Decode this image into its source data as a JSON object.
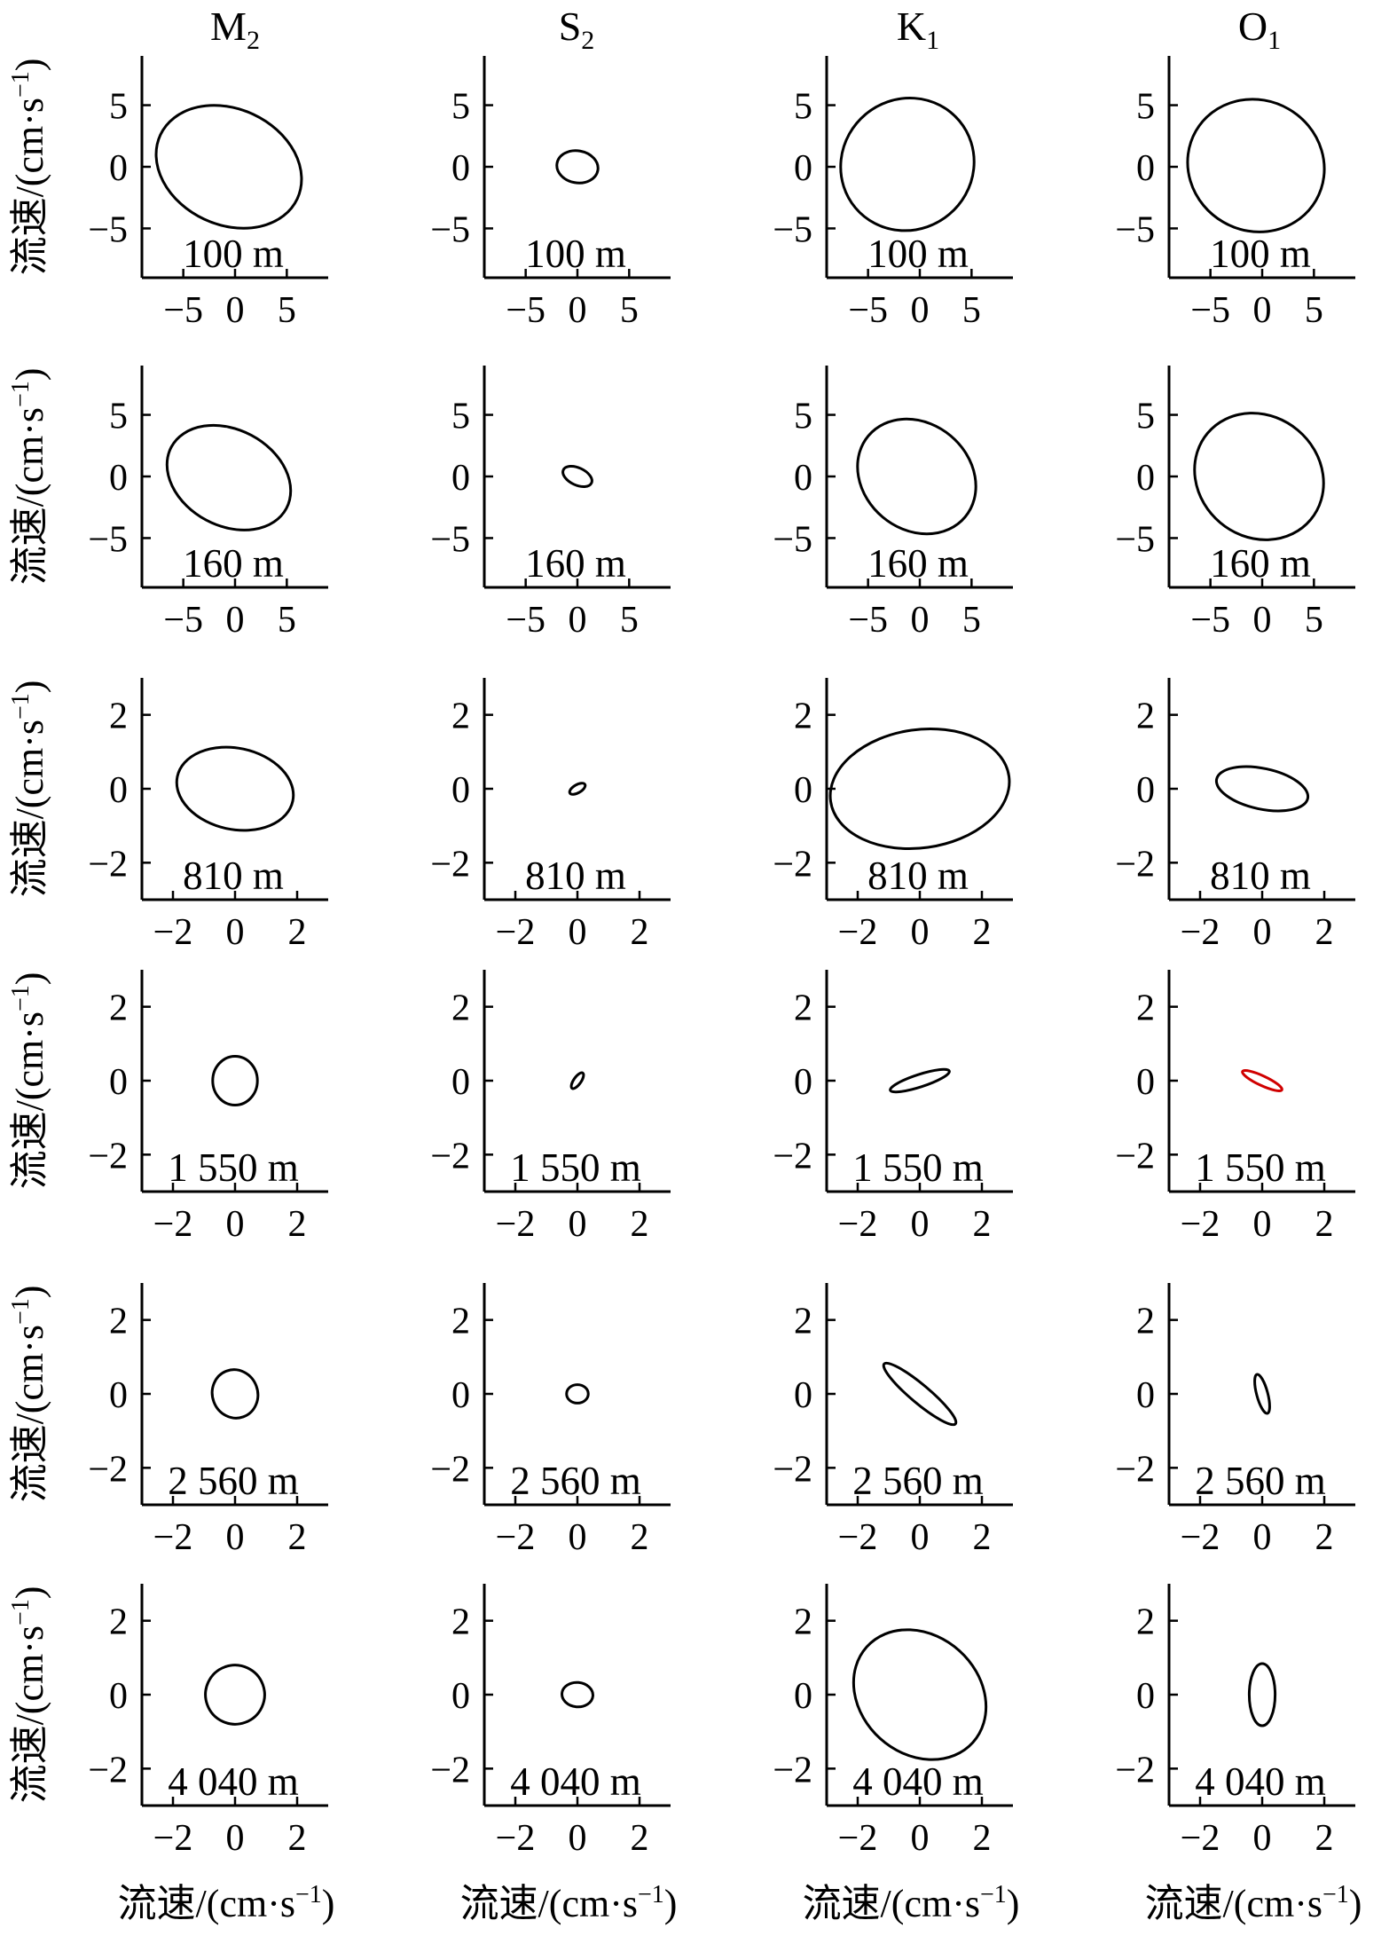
{
  "figure": {
    "column_titles": [
      {
        "base": "M",
        "sub": "2"
      },
      {
        "base": "S",
        "sub": "2"
      },
      {
        "base": "K",
        "sub": "1"
      },
      {
        "base": "O",
        "sub": "1"
      }
    ],
    "axis_label": {
      "prefix": "流速/(cm·s",
      "sup": "−1",
      "suffix": ")"
    },
    "ticks_large": [
      "−5",
      "0",
      "5"
    ],
    "ticks_small": [
      "−2",
      "0",
      "2"
    ],
    "colors": {
      "ellipse": "#000000",
      "highlight": "#d00000"
    }
  },
  "chart_data": [
    {
      "type": "scatter",
      "constituent": "M2",
      "depth_label": "100 m",
      "xlim": [
        -9,
        9
      ],
      "ylim": [
        -9,
        9
      ],
      "ellipse": {
        "center": [
          -0.6,
          0.0
        ],
        "semi_major": 7.3,
        "semi_minor": 4.7,
        "angle_deg": -25
      }
    },
    {
      "type": "scatter",
      "constituent": "S2",
      "depth_label": "100 m",
      "xlim": [
        -9,
        9
      ],
      "ylim": [
        -9,
        9
      ],
      "ellipse": {
        "center": [
          0.0,
          0.0
        ],
        "semi_major": 2.0,
        "semi_minor": 1.3,
        "angle_deg": -10
      }
    },
    {
      "type": "scatter",
      "constituent": "K1",
      "depth_label": "100 m",
      "xlim": [
        -9,
        9
      ],
      "ylim": [
        -9,
        9
      ],
      "ellipse": {
        "center": [
          -1.2,
          0.2
        ],
        "semi_major": 6.3,
        "semi_minor": 5.5,
        "angle_deg": -50
      }
    },
    {
      "type": "scatter",
      "constituent": "O1",
      "depth_label": "100 m",
      "xlim": [
        -9,
        9
      ],
      "ylim": [
        -9,
        9
      ],
      "ellipse": {
        "center": [
          -0.6,
          0.1
        ],
        "semi_major": 6.7,
        "semi_minor": 5.3,
        "angle_deg": -30
      }
    },
    {
      "type": "scatter",
      "constituent": "M2",
      "depth_label": "160 m",
      "xlim": [
        -9,
        9
      ],
      "ylim": [
        -9,
        9
      ],
      "ellipse": {
        "center": [
          -0.6,
          -0.1
        ],
        "semi_major": 6.3,
        "semi_minor": 3.9,
        "angle_deg": -28
      }
    },
    {
      "type": "scatter",
      "constituent": "S2",
      "depth_label": "160 m",
      "xlim": [
        -9,
        9
      ],
      "ylim": [
        -9,
        9
      ],
      "ellipse": {
        "center": [
          0.0,
          0.0
        ],
        "semi_major": 1.5,
        "semi_minor": 0.7,
        "angle_deg": -25
      }
    },
    {
      "type": "scatter",
      "constituent": "K1",
      "depth_label": "160 m",
      "xlim": [
        -9,
        9
      ],
      "ylim": [
        -9,
        9
      ],
      "ellipse": {
        "center": [
          -0.3,
          0.0
        ],
        "semi_major": 6.1,
        "semi_minor": 4.3,
        "angle_deg": -40
      }
    },
    {
      "type": "scatter",
      "constituent": "O1",
      "depth_label": "160 m",
      "xlim": [
        -9,
        9
      ],
      "ylim": [
        -9,
        9
      ],
      "ellipse": {
        "center": [
          -0.3,
          0.0
        ],
        "semi_major": 6.5,
        "semi_minor": 4.9,
        "angle_deg": -40
      }
    },
    {
      "type": "scatter",
      "constituent": "M2",
      "depth_label": "810 m",
      "xlim": [
        -3,
        3
      ],
      "ylim": [
        -3,
        3
      ],
      "ellipse": {
        "center": [
          0.0,
          0.0
        ],
        "semi_major": 1.9,
        "semi_minor": 1.1,
        "angle_deg": -12
      }
    },
    {
      "type": "scatter",
      "constituent": "S2",
      "depth_label": "810 m",
      "xlim": [
        -3,
        3
      ],
      "ylim": [
        -3,
        3
      ],
      "ellipse": {
        "center": [
          0.0,
          0.0
        ],
        "semi_major": 0.28,
        "semi_minor": 0.11,
        "angle_deg": 30
      }
    },
    {
      "type": "scatter",
      "constituent": "K1",
      "depth_label": "810 m",
      "xlim": [
        -3,
        3
      ],
      "ylim": [
        -3,
        3
      ],
      "ellipse": {
        "center": [
          0.0,
          0.0
        ],
        "semi_major": 2.9,
        "semi_minor": 1.6,
        "angle_deg": 8
      }
    },
    {
      "type": "scatter",
      "constituent": "O1",
      "depth_label": "810 m",
      "xlim": [
        -3,
        3
      ],
      "ylim": [
        -3,
        3
      ],
      "ellipse": {
        "center": [
          0.0,
          0.0
        ],
        "semi_major": 1.5,
        "semi_minor": 0.55,
        "angle_deg": -12
      }
    },
    {
      "type": "scatter",
      "constituent": "M2",
      "depth_label": "1 550 m",
      "xlim": [
        -3,
        3
      ],
      "ylim": [
        -3,
        3
      ],
      "ellipse": {
        "center": [
          0.0,
          0.0
        ],
        "semi_major": 0.72,
        "semi_minor": 0.66,
        "angle_deg": 0
      }
    },
    {
      "type": "scatter",
      "constituent": "S2",
      "depth_label": "1 550 m",
      "xlim": [
        -3,
        3
      ],
      "ylim": [
        -3,
        3
      ],
      "ellipse": {
        "center": [
          0.0,
          0.0
        ],
        "semi_major": 0.3,
        "semi_minor": 0.1,
        "angle_deg": 55
      }
    },
    {
      "type": "scatter",
      "constituent": "K1",
      "depth_label": "1 550 m",
      "xlim": [
        -3,
        3
      ],
      "ylim": [
        -3,
        3
      ],
      "ellipse": {
        "center": [
          0.0,
          0.0
        ],
        "semi_major": 1.0,
        "semi_minor": 0.17,
        "angle_deg": 18
      }
    },
    {
      "type": "scatter",
      "constituent": "O1",
      "depth_label": "1 550 m",
      "xlim": [
        -3,
        3
      ],
      "ylim": [
        -3,
        3
      ],
      "highlight": true,
      "ellipse": {
        "center": [
          0.0,
          0.0
        ],
        "semi_major": 0.7,
        "semi_minor": 0.13,
        "angle_deg": -25
      }
    },
    {
      "type": "scatter",
      "constituent": "M2",
      "depth_label": "2 560 m",
      "xlim": [
        -3,
        3
      ],
      "ylim": [
        -3,
        3
      ],
      "ellipse": {
        "center": [
          0.0,
          0.0
        ],
        "semi_major": 0.73,
        "semi_minor": 0.66,
        "angle_deg": 20
      }
    },
    {
      "type": "scatter",
      "constituent": "S2",
      "depth_label": "2 560 m",
      "xlim": [
        -3,
        3
      ],
      "ylim": [
        -3,
        3
      ],
      "ellipse": {
        "center": [
          0.0,
          0.0
        ],
        "semi_major": 0.35,
        "semi_minor": 0.25,
        "angle_deg": 0
      }
    },
    {
      "type": "scatter",
      "constituent": "K1",
      "depth_label": "2 560 m",
      "xlim": [
        -3,
        3
      ],
      "ylim": [
        -3,
        3
      ],
      "ellipse": {
        "center": [
          0.0,
          0.0
        ],
        "semi_major": 1.5,
        "semi_minor": 0.25,
        "angle_deg": -40
      }
    },
    {
      "type": "scatter",
      "constituent": "O1",
      "depth_label": "2 560 m",
      "xlim": [
        -3,
        3
      ],
      "ylim": [
        -3,
        3
      ],
      "ellipse": {
        "center": [
          0.0,
          0.0
        ],
        "semi_major": 0.65,
        "semi_minor": 0.15,
        "angle_deg": -75
      }
    },
    {
      "type": "scatter",
      "constituent": "M2",
      "depth_label": "4 040 m",
      "xlim": [
        -3,
        3
      ],
      "ylim": [
        -3,
        3
      ],
      "ellipse": {
        "center": [
          0.0,
          0.0
        ],
        "semi_major": 0.95,
        "semi_minor": 0.8,
        "angle_deg": 65
      }
    },
    {
      "type": "scatter",
      "constituent": "S2",
      "depth_label": "4 040 m",
      "xlim": [
        -3,
        3
      ],
      "ylim": [
        -3,
        3
      ],
      "ellipse": {
        "center": [
          0.0,
          0.0
        ],
        "semi_major": 0.5,
        "semi_minor": 0.33,
        "angle_deg": -5
      }
    },
    {
      "type": "scatter",
      "constituent": "K1",
      "depth_label": "4 040 m",
      "xlim": [
        -3,
        3
      ],
      "ylim": [
        -3,
        3
      ],
      "ellipse": {
        "center": [
          0.0,
          0.0
        ],
        "semi_major": 2.3,
        "semi_minor": 1.6,
        "angle_deg": -42
      }
    },
    {
      "type": "scatter",
      "constituent": "O1",
      "depth_label": "4 040 m",
      "xlim": [
        -3,
        3
      ],
      "ylim": [
        -3,
        3
      ],
      "ellipse": {
        "center": [
          0.0,
          0.0
        ],
        "semi_major": 1.0,
        "semi_minor": 0.35,
        "angle_deg": 90
      }
    }
  ]
}
